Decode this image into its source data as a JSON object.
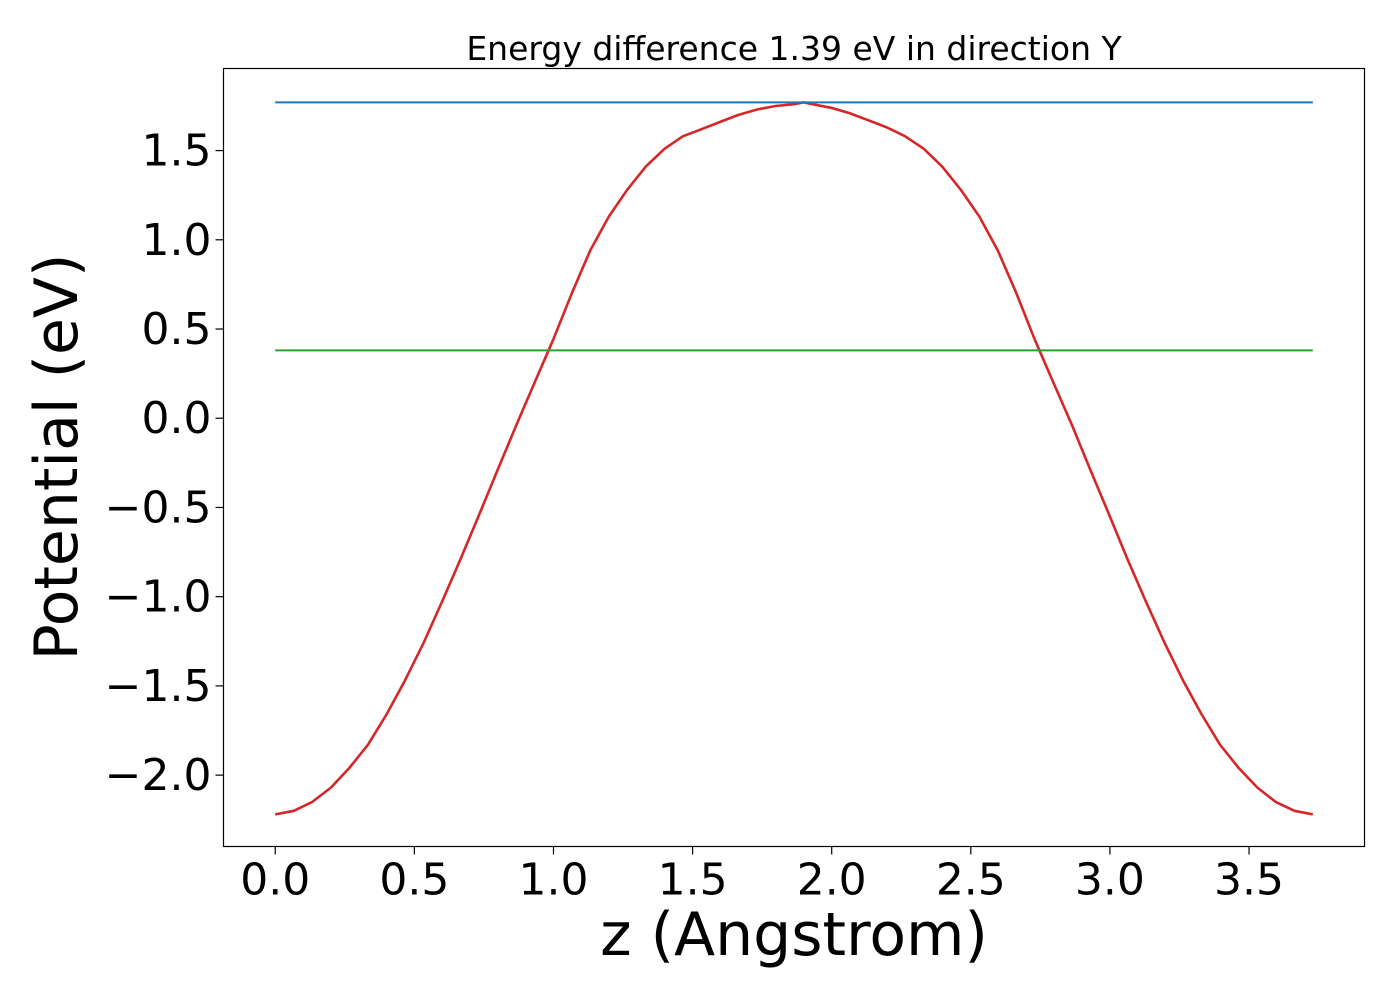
{
  "chart_data": {
    "type": "line",
    "title": "Energy difference 1.39 eV in direction Y",
    "xlabel": "z (Angstrom)",
    "ylabel": "Potential (eV)",
    "xlim": [
      -0.186,
      3.915
    ],
    "ylim": [
      -2.4,
      1.96
    ],
    "xticks": [
      0.0,
      0.5,
      1.0,
      1.5,
      2.0,
      2.5,
      3.0,
      3.5
    ],
    "xtick_labels": [
      "0.0",
      "0.5",
      "1.0",
      "1.5",
      "2.0",
      "2.5",
      "3.0",
      "3.5"
    ],
    "yticks": [
      -2.0,
      -1.5,
      -1.0,
      -0.5,
      0.0,
      0.5,
      1.0,
      1.5
    ],
    "ytick_labels": [
      "−2.0",
      "−1.5",
      "−1.0",
      "−0.5",
      "0.0",
      "0.5",
      "1.0",
      "1.5"
    ],
    "grid": false,
    "series": [
      {
        "color": "#d62728",
        "x": [
          0.0,
          0.067,
          0.133,
          0.2,
          0.266,
          0.333,
          0.4,
          0.466,
          0.533,
          0.599,
          0.666,
          0.733,
          0.799,
          0.866,
          0.932,
          0.999,
          1.066,
          1.132,
          1.199,
          1.265,
          1.332,
          1.399,
          1.465,
          1.532,
          1.598,
          1.665,
          1.732,
          1.798,
          1.865,
          1.899,
          1.931,
          1.998,
          2.064,
          2.131,
          2.198,
          2.264,
          2.331,
          2.397,
          2.464,
          2.531,
          2.597,
          2.664,
          2.73,
          2.797,
          2.864,
          2.93,
          2.997,
          3.063,
          3.13,
          3.197,
          3.263,
          3.33,
          3.396,
          3.463,
          3.53,
          3.596,
          3.663,
          3.729
        ],
        "values": [
          -2.22,
          -2.2,
          -2.15,
          -2.07,
          -1.96,
          -1.83,
          -1.66,
          -1.47,
          -1.26,
          -1.03,
          -0.79,
          -0.54,
          -0.29,
          -0.04,
          0.2,
          0.44,
          0.7,
          0.94,
          1.13,
          1.28,
          1.41,
          1.51,
          1.58,
          1.62,
          1.66,
          1.7,
          1.73,
          1.75,
          1.76,
          1.77,
          1.76,
          1.74,
          1.71,
          1.67,
          1.63,
          1.58,
          1.51,
          1.41,
          1.28,
          1.13,
          0.94,
          0.7,
          0.44,
          0.2,
          -0.04,
          -0.29,
          -0.54,
          -0.79,
          -1.03,
          -1.26,
          -1.47,
          -1.66,
          -1.83,
          -1.96,
          -2.07,
          -2.15,
          -2.2,
          -2.22
        ]
      },
      {
        "color": "#1f77b4",
        "x": [
          0.0,
          3.729
        ],
        "values": [
          1.77,
          1.77
        ]
      },
      {
        "color": "#2ca02c",
        "x": [
          0.0,
          3.729
        ],
        "values": [
          0.38,
          0.38
        ]
      }
    ]
  }
}
